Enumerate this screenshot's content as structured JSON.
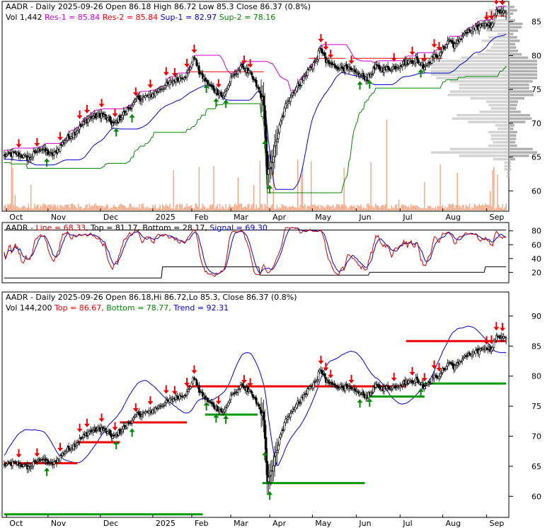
{
  "colors": {
    "frame": "#000000",
    "res_line": "#cc00cc",
    "sup1_line": "#0000cc",
    "sup2_line": "#008800",
    "volume_bar": "#f4a582",
    "vol_profile": "#b0b0b0",
    "up_arrow": "#008800",
    "down_arrow": "#ee0000",
    "red_text": "#ee0000",
    "blue_text": "#0000cc",
    "green_text": "#008800",
    "magenta_text": "#cc00cc",
    "osc_line": "#cc0000",
    "osc_signal": "#0000cc",
    "res_segment": "#ee0000",
    "sup_segment": "#009900",
    "trend_line": "#0000cc"
  },
  "x_months": [
    "Oct",
    "Nov",
    "Dec",
    "2025",
    "Feb",
    "Mar",
    "Apr",
    "May",
    "Jun",
    "Jul",
    "Aug",
    "Sep"
  ],
  "panel1": {
    "title_parts": [
      {
        "text": "AADR - Daily 2025-09-26 Open 86.18  High 86.72  Low 85.3  Close 86.37 (0.8%)",
        "color": "#000000"
      }
    ],
    "line2_parts": [
      {
        "text": "Vol 1,442  ",
        "color": "#000000"
      },
      {
        "text": "Res-1 = 85.84  ",
        "color": "#cc00cc"
      },
      {
        "text": "Res-2 = 85.84  ",
        "color": "#ee0000"
      },
      {
        "text": "Sup-1 = 82.97  ",
        "color": "#0000cc"
      },
      {
        "text": "Sup-2 = 78.16",
        "color": "#008800"
      }
    ],
    "y_ticks": [
      "85",
      "80",
      "75",
      "70",
      "65",
      "60"
    ]
  },
  "panel2": {
    "title_parts": [
      {
        "text": "AADR - ",
        "color": "#000000"
      },
      {
        "text": "Line = 68.33, ",
        "color": "#cc0000"
      },
      {
        "text": "Top = 81.17, ",
        "color": "#000000"
      },
      {
        "text": "Bottom = 28.17, ",
        "color": "#000000"
      },
      {
        "text": "Signal = 69.30",
        "color": "#0000cc"
      }
    ],
    "y_ticks": [
      "80",
      "60",
      "40",
      "20"
    ]
  },
  "panel3": {
    "title_parts": [
      {
        "text": "AADR - Daily 2025-09-26 Open 86.18,Hi 86.72,Lo 85.3, Close 86.37 (0.8%)",
        "color": "#000000"
      }
    ],
    "line2_parts": [
      {
        "text": "Vol 144,200  ",
        "color": "#000000"
      },
      {
        "text": "Top = 86.67, ",
        "color": "#ee0000"
      },
      {
        "text": "Bottom = 78.77, ",
        "color": "#008800"
      },
      {
        "text": "Trend = 92.31",
        "color": "#0000cc"
      }
    ],
    "y_ticks": [
      "90",
      "85",
      "80",
      "75",
      "70",
      "65",
      "60"
    ]
  },
  "chart_data": [
    {
      "type": "candlestick",
      "title": "AADR - Daily 2025-09-26 Open 86.18  High 86.72  Low 85.3  Close 86.37 (0.8%)",
      "x_labels": [
        "Oct",
        "Nov",
        "Dec",
        "2025",
        "Feb",
        "Mar",
        "Apr",
        "May",
        "Jun",
        "Jul",
        "Aug",
        "Sep"
      ],
      "ylim": [
        57,
        88
      ],
      "y_ticks": [
        85,
        80,
        75,
        70,
        65,
        60
      ],
      "price_anchors": [
        [
          0,
          65.2
        ],
        [
          10,
          65.5
        ],
        [
          20,
          64.8
        ],
        [
          30,
          66.3
        ],
        [
          40,
          65.2
        ],
        [
          50,
          67.5
        ],
        [
          60,
          69.0
        ],
        [
          70,
          70.8
        ],
        [
          80,
          71.3
        ],
        [
          90,
          69.8
        ],
        [
          100,
          71.8
        ],
        [
          110,
          73.6
        ],
        [
          120,
          74.1
        ],
        [
          130,
          75.3
        ],
        [
          140,
          76.4
        ],
        [
          150,
          77.2
        ],
        [
          156,
          79.8
        ],
        [
          160,
          77.5
        ],
        [
          170,
          75.3
        ],
        [
          180,
          74.0
        ],
        [
          185,
          76.1
        ],
        [
          190,
          77.6
        ],
        [
          196,
          78.3
        ],
        [
          202,
          77.2
        ],
        [
          208,
          75.3
        ],
        [
          213,
          73.1
        ],
        [
          216,
          62.2
        ],
        [
          220,
          64.5
        ],
        [
          226,
          69.5
        ],
        [
          232,
          73.2
        ],
        [
          238,
          74.8
        ],
        [
          244,
          76.2
        ],
        [
          250,
          77.9
        ],
        [
          256,
          79.3
        ],
        [
          260,
          81.2
        ],
        [
          264,
          79.0
        ],
        [
          270,
          78.5
        ],
        [
          280,
          78.1
        ],
        [
          290,
          77.3
        ],
        [
          298,
          76.6
        ],
        [
          305,
          78.3
        ],
        [
          312,
          77.9
        ],
        [
          320,
          78.3
        ],
        [
          330,
          79.0
        ],
        [
          338,
          79.4
        ],
        [
          345,
          78.4
        ],
        [
          352,
          79.7
        ],
        [
          358,
          80.3
        ],
        [
          365,
          82.3
        ],
        [
          370,
          81.4
        ],
        [
          376,
          83.0
        ],
        [
          382,
          83.6
        ],
        [
          388,
          84.0
        ],
        [
          395,
          85.0
        ],
        [
          400,
          84.3
        ],
        [
          404,
          86.9
        ],
        [
          408,
          86.4
        ],
        [
          412,
          86.37
        ]
      ],
      "series": [
        {
          "name": "Res-1",
          "value": 85.84
        },
        {
          "name": "Res-2",
          "value": 85.84
        },
        {
          "name": "Sup-1",
          "value": 82.97
        },
        {
          "name": "Sup-2",
          "value": 78.16
        }
      ],
      "volume_last": 1442
    },
    {
      "type": "line",
      "title": "AADR - Line = 68.33, Top = 81.17, Bottom = 28.17, Signal = 69.30",
      "ylim": [
        5,
        92
      ],
      "y_ticks": [
        80,
        60,
        40,
        20
      ],
      "series": [
        {
          "name": "Line",
          "last": 68.33
        },
        {
          "name": "Top",
          "last": 81.17
        },
        {
          "name": "Bottom",
          "last": 28.17
        },
        {
          "name": "Signal",
          "last": 69.3
        }
      ]
    },
    {
      "type": "candlestick",
      "title": "AADR - Daily 2025-09-26 Open 86.18,Hi 86.72,Lo 85.3, Close 86.37 (0.8%)",
      "ylim": [
        56.5,
        94
      ],
      "y_ticks": [
        90,
        85,
        80,
        75,
        70,
        65,
        60
      ],
      "series": [
        {
          "name": "Top",
          "last": 86.67
        },
        {
          "name": "Bottom",
          "last": 78.77
        },
        {
          "name": "Trend",
          "last": 92.31
        }
      ],
      "volume_last": 144200
    }
  ]
}
